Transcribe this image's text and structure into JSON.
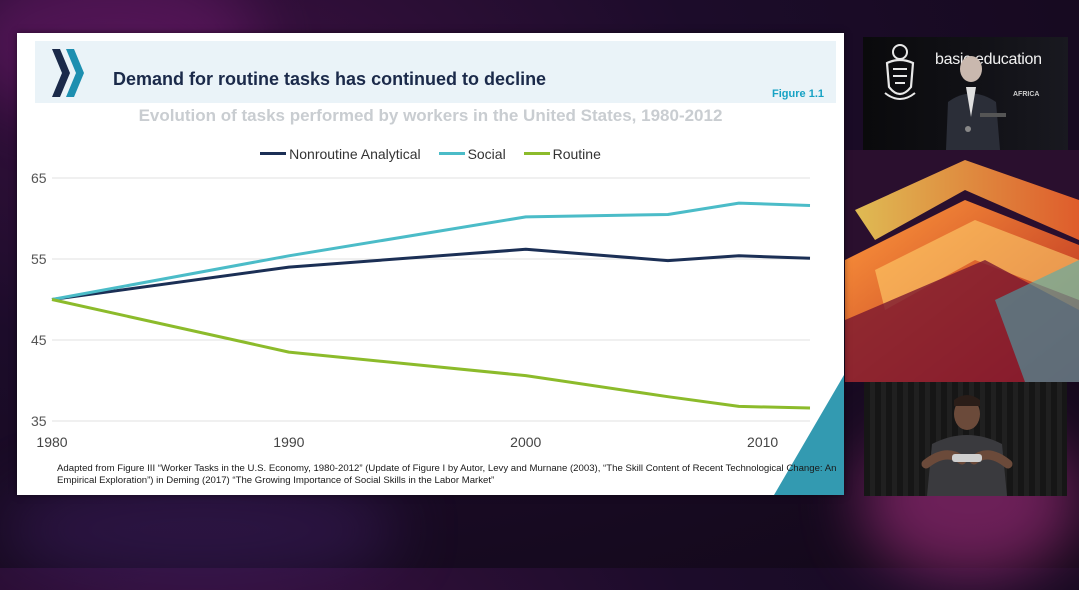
{
  "slide": {
    "title": "Demand for routine tasks has continued to decline",
    "figure_label": "Figure 1.1",
    "source_note": "Adapted from Figure III “Worker Tasks in the U.S. Economy, 1980-2012” (Update of Figure I by Autor, Levy and Murnane (2003), “The Skill Content of Recent Technological Change: An Empirical Exploration”) in Deming (2017) “The Growing Importance of Social Skills in the Labor Market”"
  },
  "broadcast": {
    "logo_text": "basic education",
    "logo_subtext": "AFRICA"
  },
  "colors": {
    "nonroutine": "#1b2f55",
    "social": "#4bbcc8",
    "routine": "#8cbb2b",
    "grid": "#e2e2e2",
    "accent": "#17a2c4"
  },
  "chart_data": {
    "type": "line",
    "title": "Evolution of tasks performed by workers in the United States, 1980-2012",
    "xlabel": "",
    "ylabel": "",
    "xlim": [
      1980,
      2012
    ],
    "ylim": [
      35,
      65
    ],
    "x_ticks": [
      1980,
      1990,
      2000,
      2010
    ],
    "y_ticks": [
      35,
      45,
      55,
      65
    ],
    "legend_position": "top-center",
    "grid": true,
    "series": [
      {
        "name": "Nonroutine Analytical",
        "color": "#1b2f55",
        "x": [
          1980,
          1990,
          2000,
          2006,
          2009,
          2012
        ],
        "y": [
          50.0,
          54.0,
          56.2,
          54.8,
          55.4,
          55.1
        ]
      },
      {
        "name": "Social",
        "color": "#4bbcc8",
        "x": [
          1980,
          1990,
          2000,
          2006,
          2009,
          2012
        ],
        "y": [
          50.0,
          55.4,
          60.2,
          60.5,
          61.9,
          61.6
        ]
      },
      {
        "name": "Routine",
        "color": "#8cbb2b",
        "x": [
          1980,
          1990,
          2000,
          2006,
          2009,
          2012
        ],
        "y": [
          50.0,
          43.5,
          40.6,
          38.0,
          36.8,
          36.6
        ]
      }
    ]
  }
}
